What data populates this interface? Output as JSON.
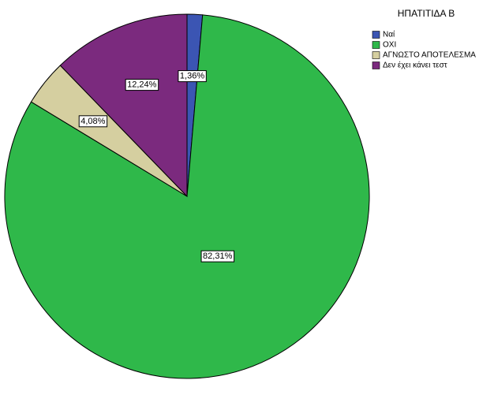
{
  "chart_data": {
    "type": "pie",
    "legend_title": "ΗΠΑΤΙΤΙΔΑ Β",
    "categories": [
      "Ναί",
      "ΟΧΙ",
      "ΑΓΝΩΣΤΟ ΑΠΟΤΕΛΕΣΜΑ",
      "Δεν έχει κάνει τεστ"
    ],
    "values": [
      1.36,
      82.31,
      4.08,
      12.24
    ],
    "value_labels": [
      "1,36%",
      "82,31%",
      "4,08%",
      "12,24%"
    ],
    "colors": [
      "#3b55b3",
      "#2fb84a",
      "#d5cfa0",
      "#7b2a7e"
    ],
    "legend": "top-right"
  }
}
